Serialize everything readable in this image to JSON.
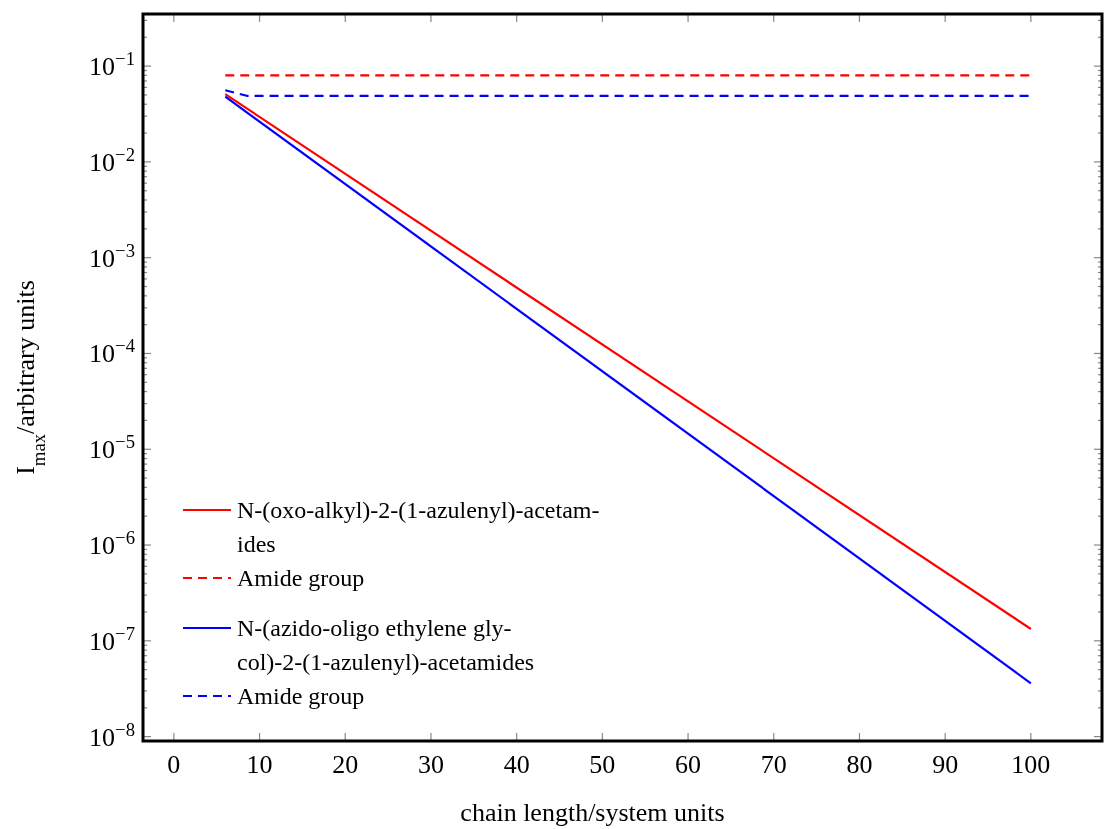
{
  "chart_data": {
    "type": "line",
    "xlabel": "chain length/system units",
    "ylabel": "I$_{max}$/arbitrary units",
    "log": "y",
    "legend": "bottom left",
    "grid": false,
    "xlim": [
      -3.6,
      108.3
    ],
    "ylim": [
      9e-09,
      0.35
    ],
    "xticks": [
      0,
      10,
      20,
      30,
      40,
      50,
      60,
      70,
      80,
      90,
      100
    ],
    "yticks": [
      {
        "value": 1e-08,
        "label": "10$^{−8}$"
      },
      {
        "value": 1e-07,
        "label": "10$^{−7}$"
      },
      {
        "value": 1e-06,
        "label": "10$^{−6}$"
      },
      {
        "value": 1e-05,
        "label": "10$^{−5}$"
      },
      {
        "value": 0.0001,
        "label": "10$^{−4}$"
      },
      {
        "value": 0.001,
        "label": "10$^{−3}$"
      },
      {
        "value": 0.01,
        "label": "10$^{−2}$"
      },
      {
        "value": 0.1,
        "label": "10$^{−1}$"
      },
      {
        "value": 2e-08,
        "label": null
      },
      {
        "value": 3e-08,
        "label": null
      },
      {
        "value": 4e-08,
        "label": null
      },
      {
        "value": 5e-08,
        "label": null
      },
      {
        "value": 6e-08,
        "label": null
      },
      {
        "value": 7e-08,
        "label": null
      },
      {
        "value": 8e-08,
        "label": null
      },
      {
        "value": 9e-08,
        "label": null
      },
      {
        "value": 2e-07,
        "label": null
      },
      {
        "value": 3e-07,
        "label": null
      },
      {
        "value": 4e-07,
        "label": null
      },
      {
        "value": 5e-07,
        "label": null
      },
      {
        "value": 6e-07,
        "label": null
      },
      {
        "value": 7e-07,
        "label": null
      },
      {
        "value": 8e-07,
        "label": null
      },
      {
        "value": 9e-07,
        "label": null
      },
      {
        "value": 2e-06,
        "label": null
      },
      {
        "value": 3e-06,
        "label": null
      },
      {
        "value": 4e-06,
        "label": null
      },
      {
        "value": 5e-06,
        "label": null
      },
      {
        "value": 6e-06,
        "label": null
      },
      {
        "value": 7e-06,
        "label": null
      },
      {
        "value": 8e-06,
        "label": null
      },
      {
        "value": 9e-06,
        "label": null
      },
      {
        "value": 2e-05,
        "label": null
      },
      {
        "value": 3e-05,
        "label": null
      },
      {
        "value": 4e-05,
        "label": null
      },
      {
        "value": 5e-05,
        "label": null
      },
      {
        "value": 6e-05,
        "label": null
      },
      {
        "value": 7e-05,
        "label": null
      },
      {
        "value": 8e-05,
        "label": null
      },
      {
        "value": 9e-05,
        "label": null
      },
      {
        "value": 0.0002,
        "label": null
      },
      {
        "value": 0.0003,
        "label": null
      },
      {
        "value": 0.0004,
        "label": null
      },
      {
        "value": 0.0005,
        "label": null
      },
      {
        "value": 0.0006,
        "label": null
      },
      {
        "value": 0.0007,
        "label": null
      },
      {
        "value": 0.0008,
        "label": null
      },
      {
        "value": 0.0009,
        "label": null
      },
      {
        "value": 0.002,
        "label": null
      },
      {
        "value": 0.003,
        "label": null
      },
      {
        "value": 0.004,
        "label": null
      },
      {
        "value": 0.005,
        "label": null
      },
      {
        "value": 0.006,
        "label": null
      },
      {
        "value": 0.007,
        "label": null
      },
      {
        "value": 0.008,
        "label": null
      },
      {
        "value": 0.009,
        "label": null
      },
      {
        "value": 0.02,
        "label": null
      },
      {
        "value": 0.03,
        "label": null
      },
      {
        "value": 0.04,
        "label": null
      },
      {
        "value": 0.05,
        "label": null
      },
      {
        "value": 0.06,
        "label": null
      },
      {
        "value": 0.07,
        "label": null
      },
      {
        "value": 0.08,
        "label": null
      },
      {
        "value": 0.09,
        "label": null
      },
      {
        "value": 0.2,
        "label": null
      },
      {
        "value": 0.3,
        "label": null
      }
    ],
    "series": [
      {
        "name": "N-(oxo-alkyl)-2-(1-azulenyl)-acetam-\nides",
        "color": "#ff0000",
        "line_style": "solid",
        "x": [
          6,
          100
        ],
        "values": [
          0.051,
          1.33e-07
        ]
      },
      {
        "name": "Amide group",
        "color": "#ff0000",
        "line_style": "dashed",
        "x": [
          6,
          100
        ],
        "values": [
          0.08,
          0.08
        ]
      },
      {
        "name": "N-(azido-oligo ethylene gly-\ncol)-2-(1-azulenyl)-acetamides",
        "color": "#0000ff",
        "line_style": "solid",
        "x": [
          6,
          100
        ],
        "values": [
          0.048,
          3.6e-08
        ]
      },
      {
        "name": "Amide group",
        "color": "#0000ff",
        "line_style": "dashed",
        "x": [
          6,
          8.5,
          100
        ],
        "values": [
          0.056,
          0.049,
          0.049
        ]
      }
    ]
  }
}
